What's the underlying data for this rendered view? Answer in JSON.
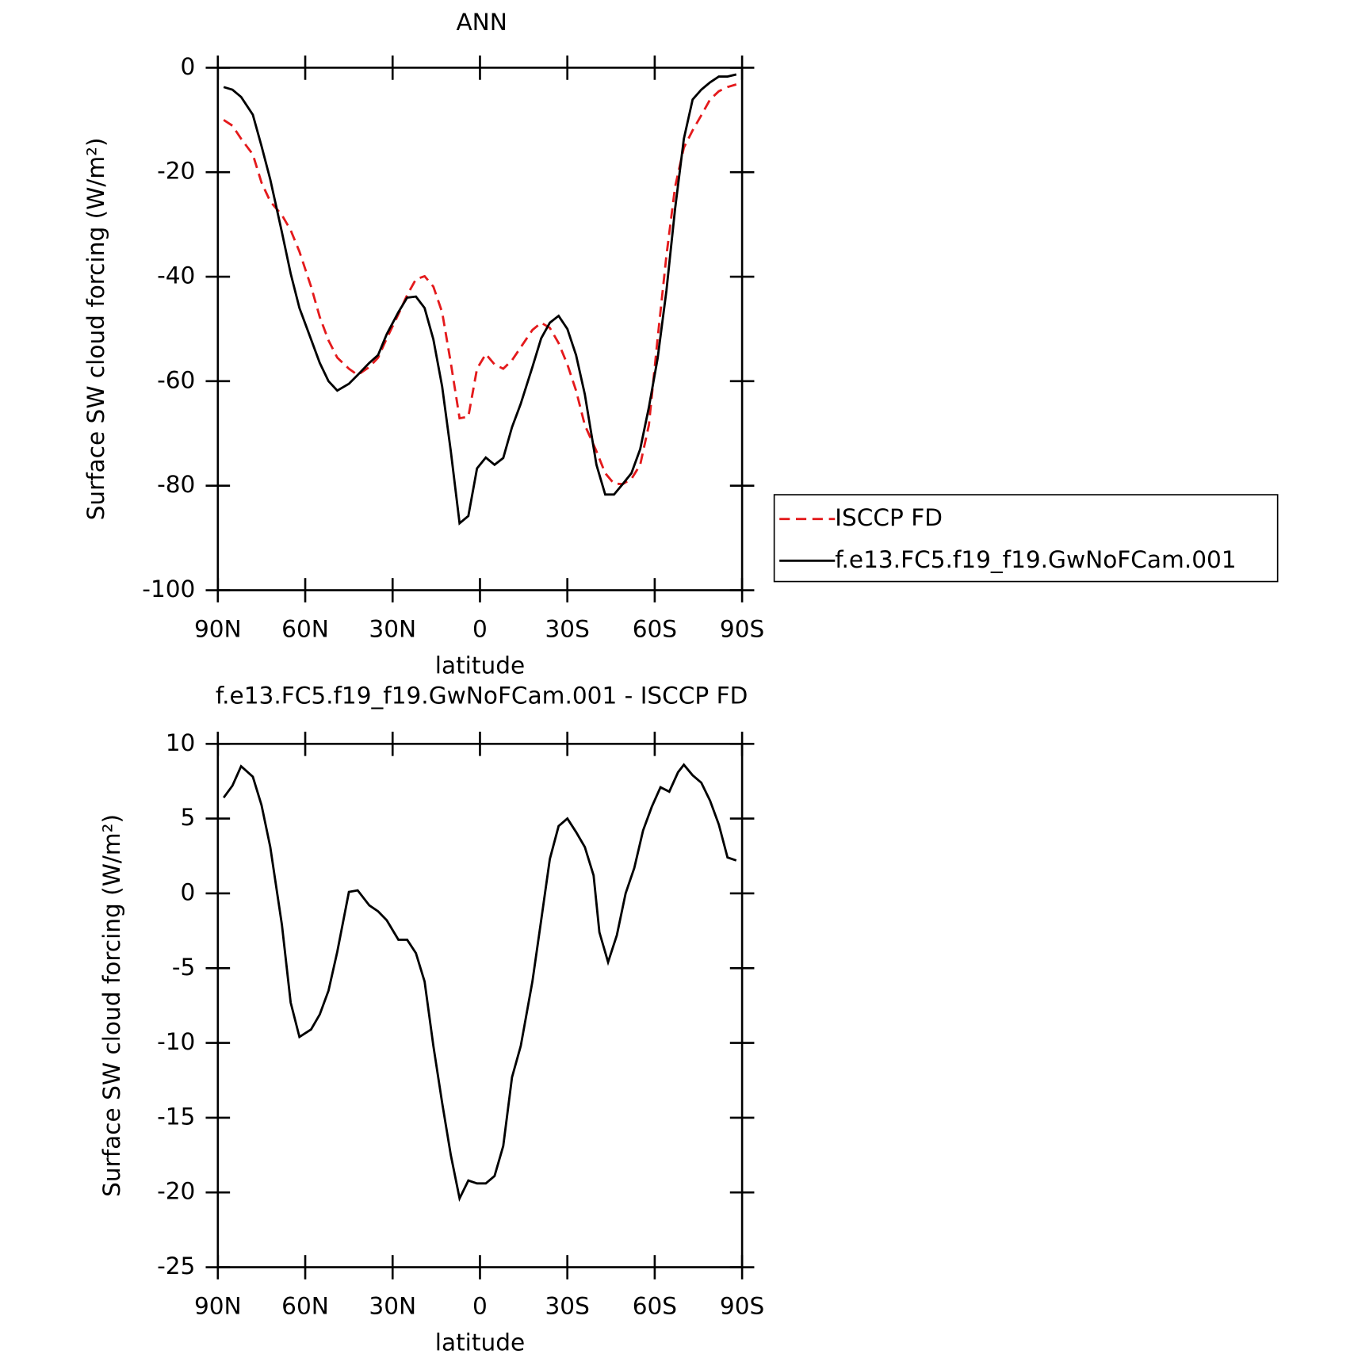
{
  "chart_data": [
    {
      "type": "line",
      "title": "ANN",
      "x_label": "latitude",
      "y_label": "Surface SW cloud forcing (W/m²)",
      "x": [
        88,
        85,
        82,
        78,
        75,
        72,
        68,
        65,
        62,
        58,
        55,
        52,
        49,
        45,
        42,
        38,
        35,
        32,
        28,
        25,
        22,
        19,
        16,
        13,
        10,
        7,
        4,
        1,
        -2,
        -5,
        -8,
        -11,
        -14,
        -18,
        -21,
        -24,
        -27,
        -30,
        -33,
        -36,
        -40,
        -43,
        -46,
        -49,
        -52,
        -55,
        -58,
        -61,
        -64,
        -67,
        -70,
        -73,
        -76,
        -79,
        -82,
        -85,
        -88
      ],
      "series": [
        {
          "name": "ISCCP FD",
          "color": "#e41a1c",
          "dash": true,
          "values": [
            -10,
            -11.1,
            -13.6,
            -16.6,
            -22,
            -25.6,
            -28.2,
            -31.1,
            -35.2,
            -41.9,
            -47.7,
            -52.2,
            -55.5,
            -57.6,
            -58.8,
            -57.3,
            -55.5,
            -51.8,
            -47.2,
            -43.5,
            -40.5,
            -39.9,
            -41.9,
            -46.8,
            -56.5,
            -67.1,
            -66.8,
            -57.6,
            -54.8,
            -56.8,
            -57.6,
            -56,
            -53.5,
            -50.2,
            -48.8,
            -49.8,
            -52.7,
            -56.8,
            -61.8,
            -68.4,
            -73.4,
            -77.6,
            -79.6,
            -79.7,
            -78.7,
            -76,
            -68.4,
            -51.8,
            -36,
            -22.8,
            -15.3,
            -12,
            -9.1,
            -6.1,
            -4.5,
            -3.7,
            -3.2
          ]
        },
        {
          "name": "f.e13.FC5.f19_f19.GwNoFCam.001",
          "color": "#000000",
          "dash": false,
          "values": [
            -3.7,
            -4.2,
            -5.6,
            -9,
            -15,
            -21.4,
            -31.5,
            -39.4,
            -46,
            -52,
            -56.5,
            -60,
            -61.8,
            -60.5,
            -58.8,
            -56.5,
            -55,
            -51,
            -46.8,
            -44,
            -43.8,
            -46,
            -52,
            -61,
            -73.4,
            -87.2,
            -85.8,
            -76.7,
            -74.6,
            -76,
            -74.7,
            -68.8,
            -64.3,
            -57.3,
            -51.8,
            -48.8,
            -47.5,
            -50,
            -55,
            -62.5,
            -76,
            -81.7,
            -81.7,
            -79.7,
            -77.6,
            -73,
            -65,
            -55.6,
            -42.7,
            -27,
            -13.6,
            -6.1,
            -4.2,
            -2.8,
            -1.7,
            -1.7,
            -1.3
          ]
        }
      ],
      "xlim": [
        90,
        -90
      ],
      "xticks": [
        {
          "value": 90,
          "label": "90N"
        },
        {
          "value": 60,
          "label": "60N"
        },
        {
          "value": 30,
          "label": "30N"
        },
        0,
        {
          "value": -30,
          "label": "30S"
        },
        {
          "value": -60,
          "label": "60S"
        },
        {
          "value": -90,
          "label": "90S"
        }
      ],
      "ylim": [
        -100,
        0
      ],
      "yticks": [
        0,
        -20,
        -40,
        -60,
        -80,
        -100
      ],
      "legend": "right"
    },
    {
      "type": "line",
      "title": "f.e13.FC5.f19_f19.GwNoFCam.001 - ISCCP FD",
      "x_label": "latitude",
      "y_label": "Surface SW cloud forcing (W/m²)",
      "x": [
        88,
        85,
        82,
        78,
        75,
        72,
        68,
        65,
        62,
        58,
        55,
        52,
        49,
        45,
        42,
        38,
        35,
        32,
        28,
        25,
        22,
        19,
        16,
        13,
        10,
        7,
        4,
        1,
        -2,
        -5,
        -8,
        -11,
        -14,
        -18,
        -21,
        -24,
        -27,
        -30,
        -33,
        -36,
        -39,
        -41,
        -44,
        -47,
        -50,
        -53,
        -56,
        -59,
        -62,
        -65,
        -68,
        -70,
        -73,
        -76,
        -79,
        -82,
        -85,
        -88
      ],
      "series": [
        {
          "color": "#000000",
          "dash": false,
          "values": [
            6.4,
            7.2,
            8.5,
            7.8,
            5.9,
            3.1,
            -2.1,
            -7.3,
            -9.6,
            -9.1,
            -8.1,
            -6.5,
            -3.9,
            0.1,
            0.2,
            -0.8,
            -1.2,
            -1.8,
            -3.1,
            -3.1,
            -4,
            -5.9,
            -10.2,
            -14,
            -17.5,
            -20.4,
            -19.2,
            -19.4,
            -19.4,
            -18.9,
            -16.9,
            -12.3,
            -10.2,
            -5.9,
            -1.8,
            2.3,
            4.5,
            5,
            4.1,
            3.1,
            1.2,
            -2.6,
            -4.6,
            -2.8,
            0,
            1.7,
            4.2,
            5.8,
            7.1,
            6.8,
            8.1,
            8.6,
            7.9,
            7.4,
            6.2,
            4.6,
            2.4,
            2.2
          ]
        }
      ],
      "xlim": [
        90,
        -90
      ],
      "xticks": [
        {
          "value": 90,
          "label": "90N"
        },
        {
          "value": 60,
          "label": "60N"
        },
        {
          "value": 30,
          "label": "30N"
        },
        0,
        {
          "value": -30,
          "label": "30S"
        },
        {
          "value": -60,
          "label": "60S"
        },
        {
          "value": -90,
          "label": "90S"
        }
      ],
      "ylim": [
        -25,
        10
      ],
      "yticks": [
        10,
        5,
        0,
        -5,
        -10,
        -15,
        -20,
        -25
      ]
    }
  ]
}
